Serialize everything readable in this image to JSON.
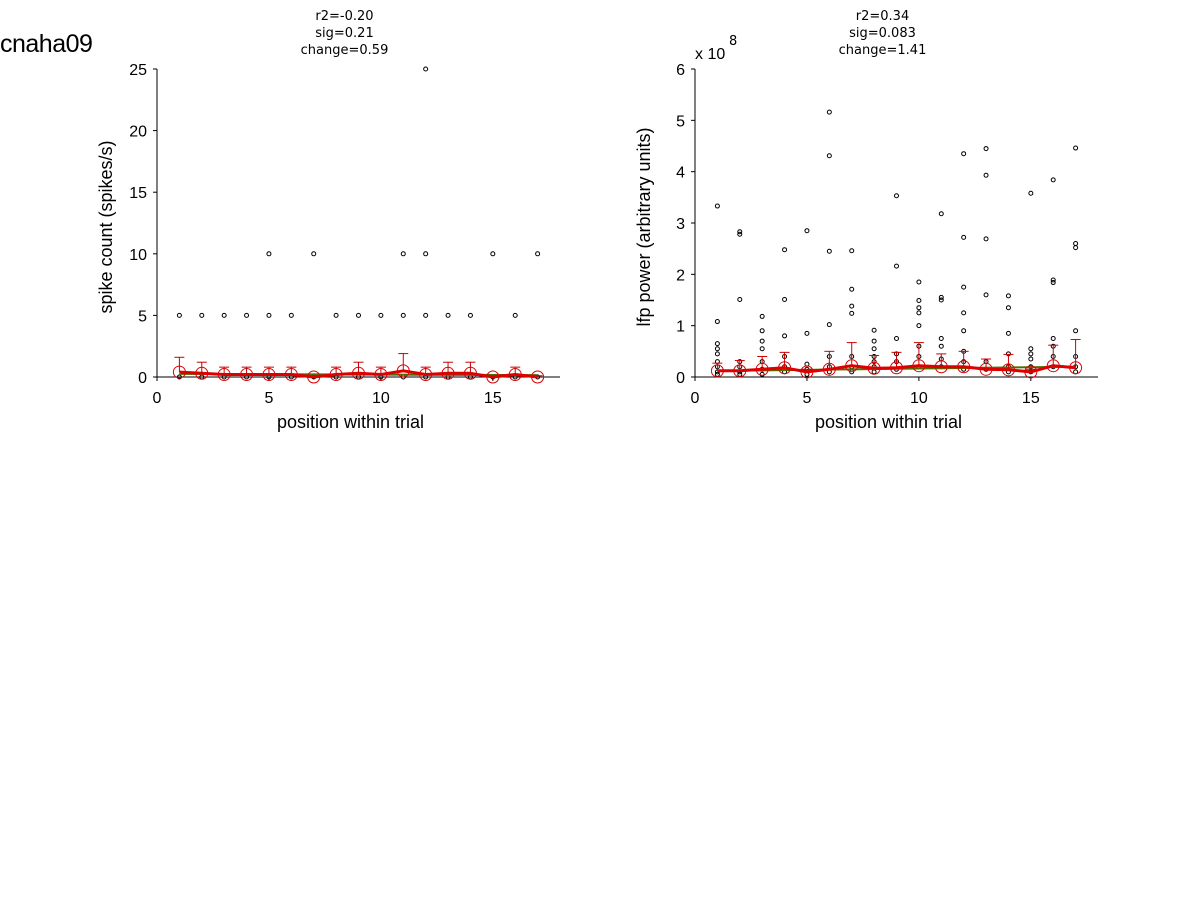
{
  "figure_title": "cnaha09",
  "colors": {
    "mean": "#dd0000",
    "fit": "#556b00",
    "points": "#000000",
    "errorbars": "#cc0000"
  },
  "chart_data": [
    {
      "type": "scatter",
      "stats": [
        "r2=-0.20",
        "sig=0.21",
        "change=0.59"
      ],
      "xlabel": "position within trial",
      "ylabel": "spike count (spikes/s)",
      "xlim": [
        0,
        18
      ],
      "ylim": [
        0,
        25
      ],
      "xticks": [
        0,
        5,
        10,
        15
      ],
      "yticks": [
        0,
        5,
        10,
        15,
        20,
        25
      ],
      "exponent_label": "",
      "points": [
        [
          1,
          0
        ],
        [
          1,
          5
        ],
        [
          2,
          0
        ],
        [
          2,
          5
        ],
        [
          3,
          0
        ],
        [
          3,
          5
        ],
        [
          4,
          0
        ],
        [
          4,
          5
        ],
        [
          5,
          0
        ],
        [
          5,
          5
        ],
        [
          5,
          10
        ],
        [
          6,
          0
        ],
        [
          6,
          5
        ],
        [
          7,
          0
        ],
        [
          7,
          10
        ],
        [
          8,
          0
        ],
        [
          8,
          5
        ],
        [
          9,
          0
        ],
        [
          9,
          5
        ],
        [
          10,
          0
        ],
        [
          10,
          5
        ],
        [
          11,
          0
        ],
        [
          11,
          5
        ],
        [
          11,
          10
        ],
        [
          12,
          0
        ],
        [
          12,
          5
        ],
        [
          12,
          10
        ],
        [
          12,
          25
        ],
        [
          13,
          0
        ],
        [
          13,
          5
        ],
        [
          14,
          0
        ],
        [
          14,
          5
        ],
        [
          15,
          0
        ],
        [
          15,
          10
        ],
        [
          16,
          0
        ],
        [
          16,
          5
        ],
        [
          17,
          0
        ],
        [
          17,
          10
        ]
      ],
      "mean": {
        "x": [
          1,
          2,
          3,
          4,
          5,
          6,
          7,
          8,
          9,
          10,
          11,
          12,
          13,
          14,
          15,
          16,
          17
        ],
        "y": [
          0.4,
          0.3,
          0.2,
          0.2,
          0.2,
          0.2,
          0.0,
          0.2,
          0.3,
          0.2,
          0.5,
          0.2,
          0.3,
          0.3,
          0.0,
          0.2,
          0.0
        ],
        "err": [
          1.2,
          0.9,
          0.6,
          0.6,
          0.6,
          0.6,
          0.1,
          0.6,
          0.9,
          0.6,
          1.4,
          0.6,
          0.9,
          0.9,
          0.1,
          0.6,
          0.1
        ]
      },
      "fit": {
        "x": [
          1,
          17
        ],
        "y": [
          0.25,
          0.15
        ]
      }
    },
    {
      "type": "scatter",
      "stats": [
        "r2=0.34",
        "sig=0.083",
        "change=1.41"
      ],
      "xlabel": "position within trial",
      "ylabel": "lfp power (arbitrary units)",
      "xlim": [
        0,
        18
      ],
      "ylim": [
        0,
        6
      ],
      "xticks": [
        0,
        5,
        10,
        15
      ],
      "yticks": [
        0,
        1,
        2,
        3,
        4,
        5,
        6
      ],
      "exponent_label": "x 10",
      "exponent_power": "8",
      "points": [
        [
          1,
          3.33
        ],
        [
          1,
          1.08
        ],
        [
          1,
          0.65
        ],
        [
          1,
          0.55
        ],
        [
          1,
          0.45
        ],
        [
          1,
          0.3
        ],
        [
          1,
          0.2
        ],
        [
          1,
          0.1
        ],
        [
          1,
          0.05
        ],
        [
          2,
          2.83
        ],
        [
          2,
          2.78
        ],
        [
          2,
          1.51
        ],
        [
          2,
          0.3
        ],
        [
          2,
          0.2
        ],
        [
          2,
          0.1
        ],
        [
          2,
          0.05
        ],
        [
          3,
          1.18
        ],
        [
          3,
          0.9
        ],
        [
          3,
          0.7
        ],
        [
          3,
          0.55
        ],
        [
          3,
          0.3
        ],
        [
          3,
          0.15
        ],
        [
          3,
          0.05
        ],
        [
          4,
          2.48
        ],
        [
          4,
          1.51
        ],
        [
          4,
          0.8
        ],
        [
          4,
          0.4
        ],
        [
          4,
          0.2
        ],
        [
          4,
          0.1
        ],
        [
          5,
          2.85
        ],
        [
          5,
          0.85
        ],
        [
          5,
          0.25
        ],
        [
          5,
          0.15
        ],
        [
          5,
          0.05
        ],
        [
          6,
          5.16
        ],
        [
          6,
          4.31
        ],
        [
          6,
          2.45
        ],
        [
          6,
          1.02
        ],
        [
          6,
          0.4
        ],
        [
          6,
          0.2
        ],
        [
          6,
          0.1
        ],
        [
          7,
          2.46
        ],
        [
          7,
          1.71
        ],
        [
          7,
          1.38
        ],
        [
          7,
          1.24
        ],
        [
          7,
          0.4
        ],
        [
          7,
          0.2
        ],
        [
          7,
          0.1
        ],
        [
          8,
          0.91
        ],
        [
          8,
          0.7
        ],
        [
          8,
          0.55
        ],
        [
          8,
          0.4
        ],
        [
          8,
          0.3
        ],
        [
          8,
          0.2
        ],
        [
          8,
          0.1
        ],
        [
          9,
          3.53
        ],
        [
          9,
          2.16
        ],
        [
          9,
          0.75
        ],
        [
          9,
          0.45
        ],
        [
          9,
          0.3
        ],
        [
          9,
          0.15
        ],
        [
          10,
          1.85
        ],
        [
          10,
          1.49
        ],
        [
          10,
          1.35
        ],
        [
          10,
          1.25
        ],
        [
          10,
          1.0
        ],
        [
          10,
          0.6
        ],
        [
          10,
          0.4
        ],
        [
          10,
          0.2
        ],
        [
          11,
          3.18
        ],
        [
          11,
          1.55
        ],
        [
          11,
          1.5
        ],
        [
          11,
          0.75
        ],
        [
          11,
          0.6
        ],
        [
          11,
          0.35
        ],
        [
          11,
          0.2
        ],
        [
          12,
          4.35
        ],
        [
          12,
          2.72
        ],
        [
          12,
          1.75
        ],
        [
          12,
          1.25
        ],
        [
          12,
          0.9
        ],
        [
          12,
          0.5
        ],
        [
          12,
          0.3
        ],
        [
          12,
          0.15
        ],
        [
          13,
          4.45
        ],
        [
          13,
          3.93
        ],
        [
          13,
          2.69
        ],
        [
          13,
          1.6
        ],
        [
          13,
          0.3
        ],
        [
          13,
          0.15
        ],
        [
          14,
          1.58
        ],
        [
          14,
          1.35
        ],
        [
          14,
          0.85
        ],
        [
          14,
          0.45
        ],
        [
          14,
          0.2
        ],
        [
          14,
          0.1
        ],
        [
          15,
          3.58
        ],
        [
          15,
          0.55
        ],
        [
          15,
          0.45
        ],
        [
          15,
          0.35
        ],
        [
          15,
          0.2
        ],
        [
          15,
          0.1
        ],
        [
          16,
          3.84
        ],
        [
          16,
          1.89
        ],
        [
          16,
          1.84
        ],
        [
          16,
          0.75
        ],
        [
          16,
          0.6
        ],
        [
          16,
          0.4
        ],
        [
          16,
          0.2
        ],
        [
          17,
          4.46
        ],
        [
          17,
          2.6
        ],
        [
          17,
          2.52
        ],
        [
          17,
          0.9
        ],
        [
          17,
          0.4
        ],
        [
          17,
          0.2
        ],
        [
          17,
          0.1
        ]
      ],
      "mean": {
        "x": [
          1,
          2,
          3,
          4,
          5,
          6,
          7,
          8,
          9,
          10,
          11,
          12,
          13,
          14,
          15,
          16,
          17
        ],
        "y": [
          0.12,
          0.12,
          0.15,
          0.18,
          0.1,
          0.15,
          0.22,
          0.17,
          0.18,
          0.22,
          0.2,
          0.2,
          0.15,
          0.14,
          0.1,
          0.22,
          0.18
        ],
        "err": [
          0.15,
          0.2,
          0.25,
          0.3,
          0.05,
          0.35,
          0.45,
          0.25,
          0.3,
          0.45,
          0.25,
          0.3,
          0.2,
          0.3,
          0.05,
          0.4,
          0.55
        ]
      },
      "fit": {
        "x": [
          1,
          17
        ],
        "y": [
          0.12,
          0.2
        ]
      }
    }
  ]
}
